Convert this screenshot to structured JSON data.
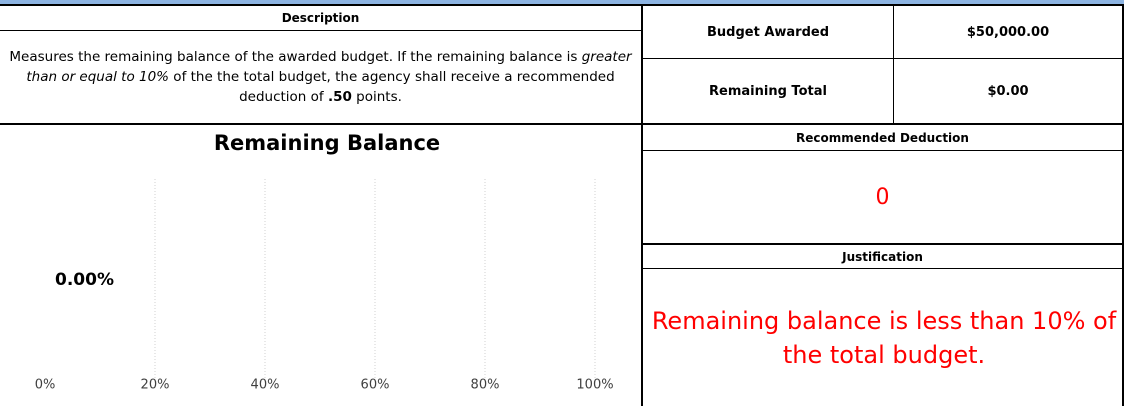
{
  "description_header": "Description",
  "description": [
    "Measures the remaining balance of the awarded budget. If the remaining balance is ",
    "greater than or equal to 10%",
    "  of the the total budget, the agency shall receive a recommended deduction of ",
    ".50",
    " points."
  ],
  "budget": {
    "awarded_label": "Budget Awarded",
    "awarded_value": "$50,000.00",
    "remaining_label": "Remaining Total",
    "remaining_value": "$0.00"
  },
  "deduction": {
    "header": "Recommended Deduction",
    "value": "0"
  },
  "justification": {
    "header": "Justification",
    "text": "Remaining balance is less than 10% of the total budget."
  },
  "chart_data": {
    "type": "bar",
    "orientation": "horizontal",
    "title": "Remaining Balance",
    "categories": [
      null
    ],
    "values": [
      0
    ],
    "value_labels": [
      "0.00%"
    ],
    "color": "#4f81bd",
    "xlim": [
      0,
      100
    ],
    "xticks": [
      {
        "value": 0,
        "label": "0%"
      },
      {
        "value": 20,
        "label": "20%"
      },
      {
        "value": 40,
        "label": "40%"
      },
      {
        "value": 60,
        "label": "60%"
      },
      {
        "value": 80,
        "label": "80%"
      },
      {
        "value": 100,
        "label": "100%"
      }
    ],
    "grid": true
  }
}
